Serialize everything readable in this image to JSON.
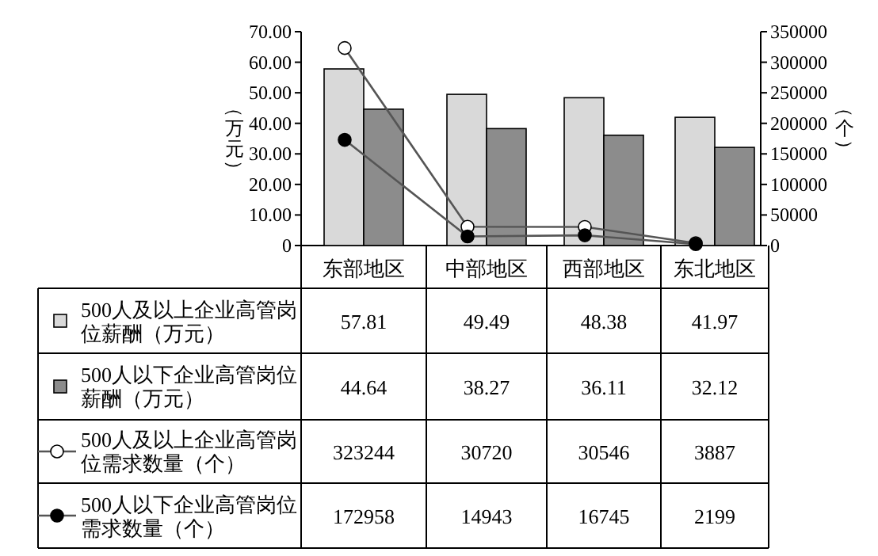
{
  "chart_data": {
    "type": "bar",
    "categories": [
      "东部地区",
      "中部地区",
      "西部地区",
      "东北地区"
    ],
    "ylabel": "（万元）",
    "y2label": "（个）",
    "ylim": [
      0,
      70
    ],
    "yticks": [
      {
        "value": 0,
        "label": "0"
      },
      {
        "value": 10,
        "label": "10.00"
      },
      {
        "value": 20,
        "label": "20.00"
      },
      {
        "value": 30,
        "label": "30.00"
      },
      {
        "value": 40,
        "label": "40.00"
      },
      {
        "value": 50,
        "label": "50.00"
      },
      {
        "value": 60,
        "label": "60.00"
      },
      {
        "value": 70,
        "label": "70.00"
      }
    ],
    "y2lim": [
      0,
      350000
    ],
    "y2ticks": [
      0,
      50000,
      100000,
      150000,
      200000,
      250000,
      300000,
      350000
    ],
    "series": [
      {
        "name": "500人及以上企业高管岗位薪酬（万元）",
        "color": "#d9d9d9",
        "values": [
          57.81,
          49.49,
          48.38,
          41.97
        ]
      },
      {
        "name": "500人以下企业高管岗位薪酬（万元）",
        "color": "#8c8c8c",
        "values": [
          44.64,
          38.27,
          36.11,
          32.12
        ]
      },
      {
        "name": "500人及以上企业高管岗位需求数量（个）",
        "type": "line",
        "axis": "y2",
        "color": "#ffffff",
        "marker": "circle",
        "values": [
          323244,
          30720,
          30546,
          3887
        ]
      },
      {
        "name": "500人以下企业高管岗位需求数量（个）",
        "type": "line",
        "axis": "y2",
        "color": "#000000",
        "marker": "circle",
        "values": [
          172958,
          14943,
          16745,
          2199
        ]
      }
    ],
    "data_labels": true,
    "legend": "bottom",
    "grid": false
  }
}
